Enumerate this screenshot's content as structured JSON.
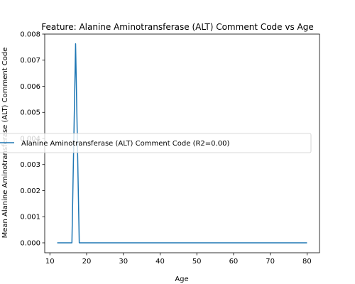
{
  "chart_data": {
    "type": "line",
    "title": "Feature: Alanine Aminotransferase (ALT) Comment Code vs Age",
    "xlabel": "Age",
    "ylabel": "Mean Alanine Aminotransferase (ALT) Comment Code",
    "xlim": [
      8.6,
      83.4
    ],
    "ylim": [
      -0.000381,
      0.008
    ],
    "x_ticks": [
      10,
      20,
      30,
      40,
      50,
      60,
      70,
      80
    ],
    "y_ticks": [
      0.0,
      0.001,
      0.002,
      0.003,
      0.004,
      0.005,
      0.006,
      0.007,
      0.008
    ],
    "y_tick_labels": [
      "0.000",
      "0.001",
      "0.002",
      "0.003",
      "0.004",
      "0.005",
      "0.006",
      "0.007",
      "0.008"
    ],
    "grid": false,
    "legend_position": "center-right",
    "series": [
      {
        "name": "Alanine Aminotransferase (ALT) Comment Code (R2=0.00)",
        "color": "#1f77b4",
        "x": [
          12,
          13,
          14,
          15,
          16,
          17,
          18,
          19,
          20,
          21,
          22,
          23,
          24,
          25,
          26,
          27,
          28,
          29,
          30,
          31,
          32,
          33,
          34,
          35,
          36,
          37,
          38,
          39,
          40,
          41,
          42,
          43,
          44,
          45,
          46,
          47,
          48,
          49,
          50,
          51,
          52,
          53,
          54,
          55,
          56,
          57,
          58,
          59,
          60,
          61,
          62,
          63,
          64,
          65,
          66,
          67,
          68,
          69,
          70,
          71,
          72,
          73,
          74,
          75,
          76,
          77,
          78,
          79,
          80
        ],
        "y": [
          0,
          0,
          0,
          0,
          0,
          0.00763,
          0,
          0,
          0,
          0,
          0,
          0,
          0,
          0,
          0,
          0,
          0,
          0,
          0,
          0,
          0,
          0,
          0,
          0,
          0,
          0,
          0,
          0,
          0,
          0,
          0,
          0,
          0,
          0,
          0,
          0,
          0,
          0,
          0,
          0,
          0,
          0,
          0,
          0,
          0,
          0,
          0,
          0,
          0,
          0,
          0,
          0,
          0,
          0,
          0,
          0,
          0,
          0,
          0,
          0,
          0,
          0,
          0,
          0,
          0,
          0,
          0,
          0,
          0
        ]
      }
    ]
  }
}
